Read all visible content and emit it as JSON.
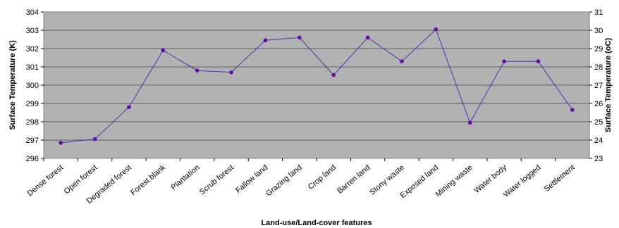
{
  "chart_data": {
    "type": "line",
    "title": "",
    "xlabel": "Land-use/Land-cover features",
    "ylabel_left": "Surface Temperature (K)",
    "ylabel_right": "Surface Temperature (oC)",
    "ylim_left": [
      296,
      304
    ],
    "ylim_right": [
      23,
      31
    ],
    "yticks_left": [
      "296",
      "297",
      "298",
      "299",
      "300",
      "301",
      "302",
      "303",
      "304"
    ],
    "yticks_right": [
      "23",
      "24",
      "25",
      "26",
      "27",
      "28",
      "29",
      "30",
      "31"
    ],
    "grid": true,
    "categories": [
      "Dense forest",
      "Open forest",
      "Degraded forest",
      "Forest blank",
      "Plantation",
      "Scrub forest",
      "Fallow land",
      "Grazing land",
      "Crop land",
      "Barren land",
      "Stony waste",
      "Exposed land",
      "Mining waste",
      "Water body",
      "Water logged",
      "Settlement"
    ],
    "values": [
      296.85,
      297.05,
      298.8,
      301.9,
      300.8,
      300.7,
      302.45,
      302.6,
      300.55,
      302.6,
      301.3,
      303.05,
      297.95,
      301.3,
      301.3,
      298.65
    ],
    "colors": {
      "plot_background": "#b2b2b2",
      "line": "#3a3ab4",
      "marker": "#6a0aa0",
      "grid": "#000000"
    }
  }
}
